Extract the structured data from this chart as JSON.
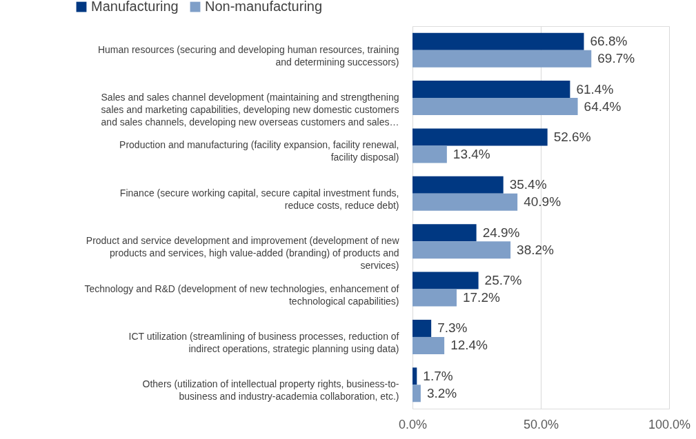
{
  "chart_data": {
    "type": "bar",
    "orientation": "horizontal",
    "categories": [
      "Human resources (securing and developing human resources, training and determining successors)",
      "Sales and sales channel development (maintaining and strengthening sales and marketing capabilities, developing new domestic customers and sales channels, developing new overseas customers and sales…",
      "Production and manufacturing (facility expansion, facility renewal, facility disposal)",
      "Finance (secure working capital, secure capital investment funds, reduce costs, reduce debt)",
      "Product and service development and improvement (development of new products and services, high value-added (branding) of products and services)",
      "Technology and R&D (development of new technologies, enhancement of technological capabilities)",
      "ICT utilization (streamlining of business processes, reduction of indirect operations, strategic planning using data)",
      "Others (utilization of intellectual property rights, business-to-business and industry-academia collaboration, etc.)"
    ],
    "series": [
      {
        "name": "Manufacturing",
        "color": "#003882",
        "values": [
          66.8,
          61.4,
          52.6,
          35.4,
          24.9,
          25.7,
          7.3,
          1.7
        ],
        "value_labels": [
          "66.8%",
          "61.4%",
          "52.6%",
          "35.4%",
          "24.9%",
          "25.7%",
          "7.3%",
          "1.7%"
        ]
      },
      {
        "name": "Non-manufacturing",
        "color": "#7f9fc8",
        "values": [
          69.7,
          64.4,
          13.4,
          40.9,
          38.2,
          17.2,
          12.4,
          3.2
        ],
        "value_labels": [
          "69.7%",
          "64.4%",
          "13.4%",
          "40.9%",
          "38.2%",
          "17.2%",
          "12.4%",
          "3.2%"
        ]
      }
    ],
    "xlim": [
      0,
      100
    ],
    "xticks": [
      {
        "value": 0,
        "label": "0.0%"
      },
      {
        "value": 50,
        "label": "50.0%"
      },
      {
        "value": 100,
        "label": "100.0%"
      }
    ],
    "grid": "x",
    "legend": "top left"
  }
}
